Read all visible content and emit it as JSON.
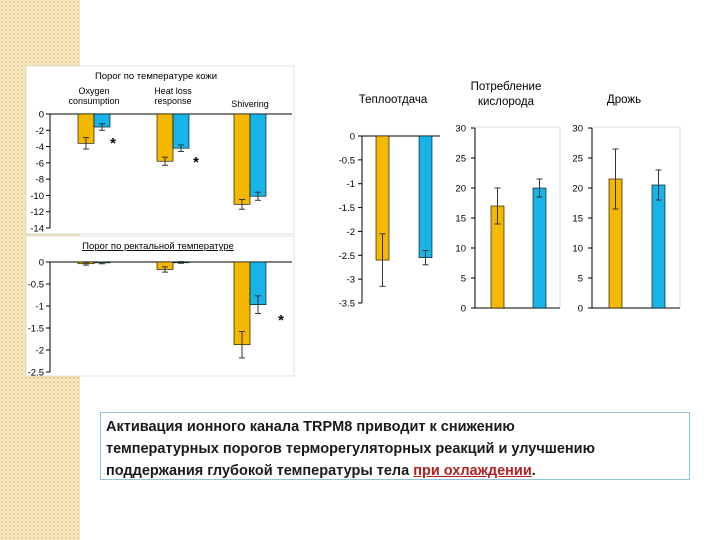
{
  "colors": {
    "series_a": "#f5b800",
    "series_b": "#18b4e8",
    "axis": "#000000",
    "error_bar": "#333333"
  },
  "charts": {
    "skin": {
      "title": "Порог по температуре кожи",
      "categories": [
        "Oxygen\nconsumption",
        "Heat loss\nresponse",
        "Shivering"
      ],
      "yticks": [
        "0",
        "-2",
        "-4",
        "-6",
        "-8",
        "-10",
        "-12",
        "-14"
      ],
      "star": "*"
    },
    "rectal": {
      "title": "Порог по ректальной температуре",
      "yticks": [
        "0",
        "-0.5",
        "-1",
        "-1.5",
        "-2",
        "-2.5"
      ],
      "star": "*"
    },
    "heat": {
      "title": "Теплоотдача",
      "yticks": [
        "0",
        "-0.5",
        "-1",
        "-1.5",
        "-2",
        "-2.5",
        "-3",
        "-3.5"
      ]
    },
    "oxygen": {
      "title": "Потребление\nкислорода",
      "yticks": [
        "30",
        "25",
        "20",
        "15",
        "10",
        "5",
        "0"
      ]
    },
    "shiver": {
      "title": "Дрожь",
      "yticks": [
        "30",
        "25",
        "20",
        "15",
        "10",
        "5",
        "0"
      ]
    }
  },
  "chart_data": [
    {
      "type": "bar",
      "title": "Порог по температуре кожи",
      "categories": [
        "Oxygen consumption",
        "Heat loss response",
        "Shivering"
      ],
      "ylim": [
        -14,
        0
      ],
      "series": [
        {
          "values": [
            -3.6,
            -5.8,
            -11.1
          ],
          "errors": [
            0.7,
            0.5,
            0.6
          ]
        },
        {
          "values": [
            -1.6,
            -4.2,
            -10.1
          ],
          "errors": [
            0.4,
            0.4,
            0.5
          ]
        }
      ],
      "annotations": [
        {
          "text": "*",
          "category": "Oxygen consumption"
        },
        {
          "text": "*",
          "category": "Heat loss response"
        }
      ]
    },
    {
      "type": "bar",
      "title": "Порог по ректальной температуре",
      "categories": [
        "Oxygen consumption",
        "Heat loss response",
        "Shivering"
      ],
      "ylim": [
        -2.5,
        0
      ],
      "series": [
        {
          "values": [
            -0.04,
            -0.17,
            -1.88
          ],
          "errors": [
            0.03,
            0.06,
            0.3
          ]
        },
        {
          "values": [
            -0.02,
            -0.01,
            -0.97
          ],
          "errors": [
            0.02,
            0.02,
            0.2
          ]
        }
      ],
      "annotations": [
        {
          "text": "*",
          "category": "Shivering"
        }
      ]
    },
    {
      "type": "bar",
      "title": "Теплоотдача",
      "ylim": [
        -3.5,
        0
      ],
      "series": [
        {
          "values": [
            -2.6
          ],
          "errors": [
            0.55
          ]
        },
        {
          "values": [
            -2.55
          ],
          "errors": [
            0.15
          ]
        }
      ]
    },
    {
      "type": "bar",
      "title": "Потребление кислорода",
      "ylim": [
        0,
        30
      ],
      "series": [
        {
          "values": [
            17
          ],
          "errors": [
            3
          ]
        },
        {
          "values": [
            20
          ],
          "errors": [
            1.5
          ]
        }
      ]
    },
    {
      "type": "bar",
      "title": "Дрожь",
      "ylim": [
        0,
        30
      ],
      "series": [
        {
          "values": [
            21.5
          ],
          "errors": [
            5
          ]
        },
        {
          "values": [
            20.5
          ],
          "errors": [
            2.5
          ]
        }
      ]
    }
  ],
  "caption": {
    "line1": "Активация ионного канала TRPM8 приводит к снижению",
    "line2": "температурных порогов терморегуляторных реакций и улучшению",
    "line3_start": "поддержания глубокой температуры тела ",
    "line3_under": "при охлаждении",
    "line3_end": "."
  }
}
